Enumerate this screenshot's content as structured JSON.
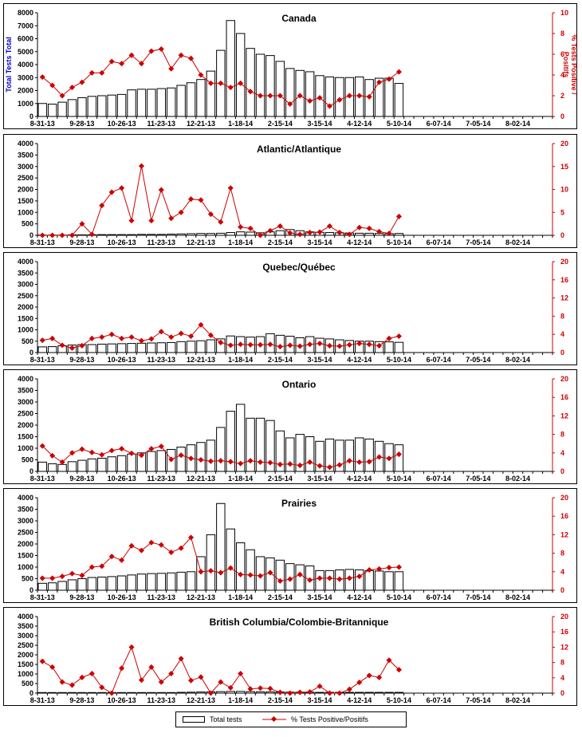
{
  "legend": {
    "bars_label": "Total tests",
    "line_label": "% Tests Positive/Positifs",
    "bar_color": "#ffffff",
    "line_color": "#cc0000"
  },
  "colors": {
    "border": "#000000",
    "right_axis": "#cc0000",
    "left_label": "#0000cc"
  },
  "x_ticks": [
    "8-31-13",
    "9-28-13",
    "10-26-13",
    "11-23-13",
    "12-21-13",
    "1-18-14",
    "2-15-14",
    "3-15-14",
    "4-12-14",
    "5-10-14",
    "6-07-14",
    "7-05-14",
    "8-02-14"
  ],
  "chart_data": [
    {
      "type": "bar+line",
      "title": "Canada",
      "ylabel_left": "Total Tests Total",
      "ylabel_right": "% Tests Positive / Positifs",
      "left_ticks": [
        "0",
        "1000",
        "2000",
        "3000",
        "4000",
        "5000",
        "6000",
        "7000",
        "8000"
      ],
      "right_ticks": [
        "0",
        "2",
        "4",
        "6",
        "8",
        "10"
      ],
      "ylim_left": [
        0,
        8000
      ],
      "ylim_right": [
        0,
        10
      ],
      "bars": [
        1000,
        950,
        1100,
        1300,
        1450,
        1550,
        1600,
        1650,
        1700,
        2050,
        2100,
        2100,
        2150,
        2200,
        2400,
        2600,
        2850,
        3500,
        5100,
        7400,
        6400,
        5250,
        4800,
        4700,
        4250,
        3700,
        3550,
        3450,
        3150,
        3050,
        3000,
        3000,
        3050,
        2850,
        2950,
        2950,
        2550
      ],
      "line": [
        3.8,
        3.0,
        2.0,
        2.8,
        3.3,
        4.2,
        4.2,
        5.3,
        5.1,
        5.9,
        5.1,
        6.3,
        6.5,
        4.6,
        5.9,
        5.6,
        4.0,
        3.2,
        3.2,
        2.8,
        3.2,
        2.4,
        2.0,
        2.0,
        2.0,
        1.2,
        2.0,
        1.5,
        1.8,
        1.0,
        1.6,
        2.0,
        2.0,
        1.9,
        3.3,
        3.6,
        4.3
      ]
    },
    {
      "type": "bar+line",
      "title": "Atlantic/Atlantique",
      "ylabel_left": "",
      "ylabel_right": "",
      "left_ticks": [
        "0",
        "500",
        "1000",
        "1500",
        "2000",
        "2500",
        "3000",
        "3500",
        "4000"
      ],
      "right_ticks": [
        "0",
        "5",
        "10",
        "15",
        "20"
      ],
      "ylim_left": [
        0,
        4000
      ],
      "ylim_right": [
        0,
        20
      ],
      "bars": [
        10,
        10,
        10,
        20,
        20,
        20,
        30,
        30,
        30,
        30,
        40,
        40,
        40,
        50,
        60,
        70,
        80,
        80,
        90,
        120,
        150,
        140,
        110,
        150,
        200,
        250,
        200,
        150,
        130,
        120,
        110,
        100,
        90,
        90,
        80,
        70,
        80
      ],
      "line": [
        0,
        0,
        0,
        0,
        2.5,
        0.2,
        6.5,
        9.4,
        10.3,
        3.2,
        15.1,
        3.2,
        9.9,
        3.7,
        5.0,
        7.9,
        7.7,
        4.6,
        2.9,
        10.3,
        1.8,
        1.5,
        0,
        1.0,
        2.0,
        0.5,
        0.2,
        0.6,
        0.7,
        2.0,
        0.6,
        0.2,
        1.7,
        1.5,
        0.8,
        0.4,
        4.1
      ]
    },
    {
      "type": "bar+line",
      "title": "Quebec/Québec",
      "ylabel_left": "",
      "ylabel_right": "",
      "left_ticks": [
        "0",
        "500",
        "1000",
        "1500",
        "2000",
        "2500",
        "3000",
        "3500",
        "4000"
      ],
      "right_ticks": [
        "0",
        "4",
        "8",
        "12",
        "16",
        "20"
      ],
      "ylim_left": [
        0,
        4000
      ],
      "ylim_right": [
        0,
        20
      ],
      "bars": [
        250,
        260,
        300,
        330,
        350,
        350,
        370,
        380,
        390,
        400,
        410,
        420,
        430,
        440,
        480,
        500,
        520,
        560,
        600,
        730,
        700,
        680,
        700,
        830,
        760,
        720,
        650,
        700,
        630,
        600,
        560,
        530,
        500,
        500,
        480,
        470,
        450
      ],
      "line": [
        2.7,
        3.1,
        1.6,
        1.0,
        1.5,
        3.1,
        3.4,
        4.0,
        3.1,
        3.4,
        2.6,
        3.0,
        4.6,
        3.4,
        4.2,
        3.6,
        6.1,
        3.8,
        2.2,
        1.6,
        1.8,
        1.7,
        1.7,
        1.8,
        1.3,
        1.6,
        1.4,
        1.8,
        2.0,
        1.5,
        1.4,
        1.7,
        2.0,
        1.8,
        1.5,
        3.1,
        3.6
      ]
    },
    {
      "type": "bar+line",
      "title": "Ontario",
      "ylabel_left": "",
      "ylabel_right": "",
      "left_ticks": [
        "0",
        "500",
        "1000",
        "1500",
        "2000",
        "2500",
        "3000",
        "3500",
        "4000"
      ],
      "right_ticks": [
        "0",
        "4",
        "8",
        "12",
        "16",
        "20"
      ],
      "ylim_left": [
        0,
        4000
      ],
      "ylim_right": [
        0,
        20
      ],
      "bars": [
        400,
        330,
        300,
        420,
        480,
        540,
        570,
        630,
        680,
        750,
        800,
        860,
        900,
        950,
        1050,
        1150,
        1250,
        1350,
        1900,
        2600,
        2900,
        2300,
        2300,
        2200,
        1750,
        1450,
        1600,
        1500,
        1300,
        1400,
        1350,
        1350,
        1450,
        1400,
        1300,
        1200,
        1150
      ],
      "line": [
        5.5,
        3.4,
        2.0,
        4.0,
        4.8,
        4.1,
        3.6,
        4.5,
        4.9,
        3.9,
        3.5,
        4.9,
        5.4,
        2.6,
        3.5,
        2.8,
        2.5,
        2.2,
        2.3,
        2.1,
        1.7,
        2.3,
        2.0,
        1.9,
        1.5,
        1.6,
        1.3,
        2.0,
        1.2,
        0.9,
        1.4,
        2.3,
        2.0,
        2.1,
        3.1,
        2.8,
        3.7
      ]
    },
    {
      "type": "bar+line",
      "title": "Prairies",
      "ylabel_left": "",
      "ylabel_right": "",
      "left_ticks": [
        "0",
        "500",
        "1000",
        "1500",
        "2000",
        "2500",
        "3000",
        "3500",
        "4000"
      ],
      "right_ticks": [
        "0",
        "4",
        "8",
        "12",
        "16",
        "20"
      ],
      "ylim_left": [
        0,
        4000
      ],
      "ylim_right": [
        0,
        20
      ],
      "bars": [
        300,
        320,
        380,
        450,
        500,
        550,
        570,
        590,
        620,
        660,
        700,
        720,
        730,
        750,
        780,
        800,
        1450,
        2400,
        3750,
        2650,
        2050,
        1750,
        1450,
        1400,
        1300,
        1150,
        1100,
        1050,
        850,
        850,
        880,
        900,
        880,
        850,
        830,
        800,
        800
      ],
      "line": [
        2.6,
        2.6,
        3.0,
        3.6,
        3.2,
        5.0,
        5.2,
        7.3,
        6.5,
        9.6,
        8.6,
        10.3,
        9.8,
        8.2,
        9.1,
        11.4,
        4.0,
        4.2,
        3.8,
        4.8,
        3.4,
        3.3,
        3.1,
        3.8,
        2.0,
        2.4,
        3.4,
        2.2,
        2.6,
        2.6,
        2.4,
        2.6,
        3.0,
        4.4,
        4.6,
        4.9,
        5.0
      ]
    },
    {
      "type": "bar+line",
      "title": "British Columbia/Colombie-Britannique",
      "ylabel_left": "",
      "ylabel_right": "",
      "left_ticks": [
        "0",
        "500",
        "1000",
        "1500",
        "2000",
        "2500",
        "3000",
        "3500",
        "4000"
      ],
      "right_ticks": [
        "0",
        "4",
        "8",
        "12",
        "16",
        "20"
      ],
      "ylim_left": [
        0,
        4000
      ],
      "ylim_right": [
        0,
        20
      ],
      "bars": [
        30,
        30,
        30,
        30,
        30,
        30,
        30,
        30,
        30,
        30,
        30,
        30,
        30,
        30,
        40,
        50,
        60,
        70,
        80,
        90,
        90,
        80,
        70,
        70,
        60,
        50,
        50,
        50,
        40,
        40,
        40,
        40,
        40,
        40,
        40,
        40,
        40
      ],
      "line": [
        8.3,
        6.8,
        2.9,
        2.1,
        4.1,
        5.1,
        1.5,
        0,
        6.5,
        12.0,
        3.4,
        6.8,
        2.9,
        5.1,
        9.0,
        3.3,
        4.2,
        0,
        2.9,
        1.4,
        5.1,
        1.1,
        1.3,
        1.2,
        0.2,
        0,
        0.2,
        0.3,
        1.8,
        0,
        0,
        1.0,
        2.8,
        4.6,
        4.1,
        8.6,
        6.1
      ]
    }
  ]
}
